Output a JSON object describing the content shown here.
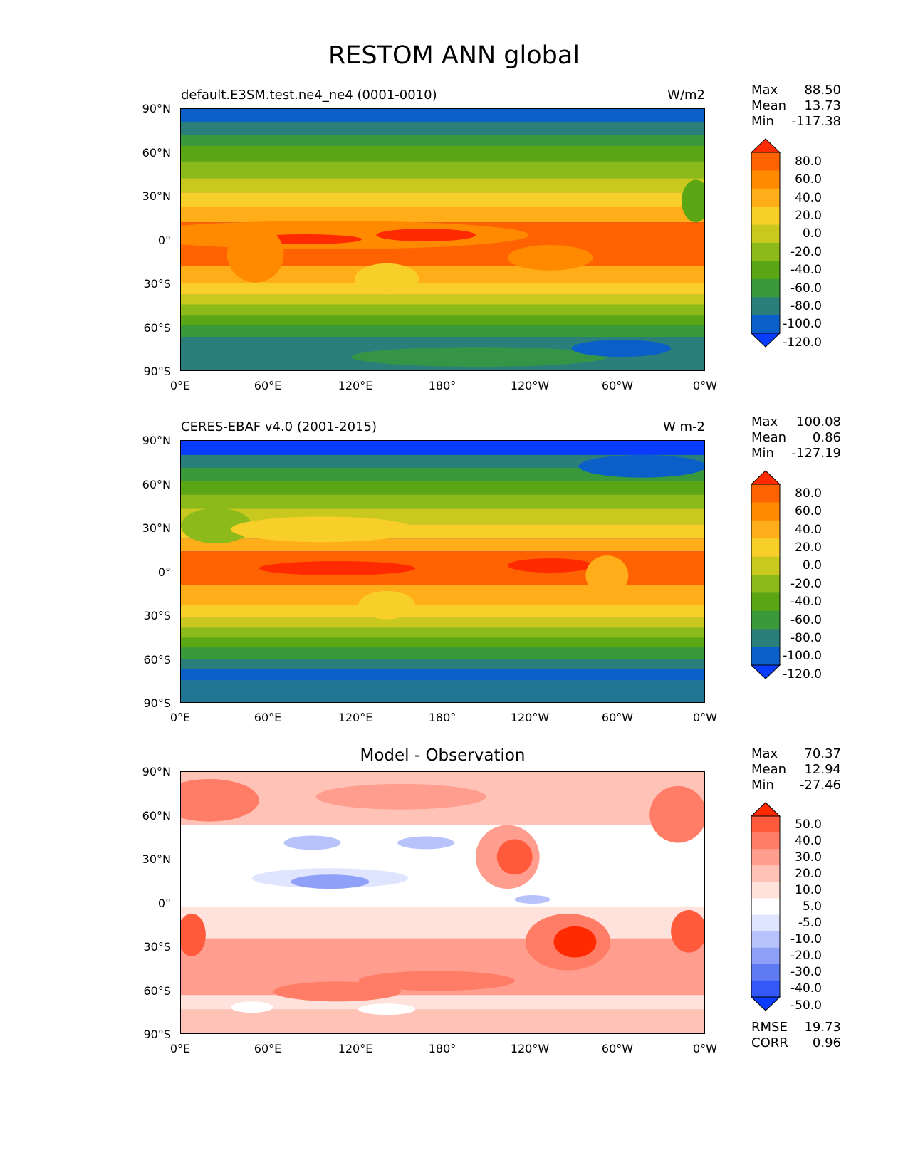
{
  "title": "RESTOM ANN global",
  "axes": {
    "y_ticks": [
      "90°N",
      "60°N",
      "30°N",
      "0°",
      "30°S",
      "60°S",
      "90°S"
    ],
    "x_ticks": [
      "0°E",
      "60°E",
      "120°E",
      "180°",
      "120°W",
      "60°W",
      "0°W"
    ]
  },
  "panels": [
    {
      "id": "model",
      "title": "default.E3SM.test.ne4_ne4 (0001-0010)",
      "units": "W/m2",
      "stats": [
        {
          "label": "Max",
          "value": "88.50"
        },
        {
          "label": "Mean",
          "value": "13.73"
        },
        {
          "label": "Min",
          "value": "-117.38"
        }
      ],
      "colorbar": {
        "labels": [
          "80.0",
          "60.0",
          "40.0",
          "20.0",
          "0.0",
          "-20.0",
          "-40.0",
          "-60.0",
          "-80.0",
          "-100.0",
          "-120.0"
        ],
        "colors": [
          "#ff2a00",
          "#ff6200",
          "#ff8a00",
          "#ffae1a",
          "#f7cf28",
          "#c8c81e",
          "#8cba1a",
          "#5aa614",
          "#3a9a3a",
          "#2a7f7a",
          "#0a60c8",
          "#0a3cff"
        ]
      }
    },
    {
      "id": "obs",
      "title": "CERES-EBAF v4.0 (2001-2015)",
      "units": "W m-2",
      "stats": [
        {
          "label": "Max",
          "value": "100.08"
        },
        {
          "label": "Mean",
          "value": "0.86"
        },
        {
          "label": "Min",
          "value": "-127.19"
        }
      ],
      "colorbar": {
        "labels": [
          "80.0",
          "60.0",
          "40.0",
          "20.0",
          "0.0",
          "-20.0",
          "-40.0",
          "-60.0",
          "-80.0",
          "-100.0",
          "-120.0"
        ],
        "colors": [
          "#ff2a00",
          "#ff6200",
          "#ff8a00",
          "#ffae1a",
          "#f7cf28",
          "#c8c81e",
          "#8cba1a",
          "#5aa614",
          "#3a9a3a",
          "#2a7f7a",
          "#0a60c8",
          "#0a3cff"
        ]
      }
    },
    {
      "id": "diff",
      "title": "Model - Observation",
      "stats": [
        {
          "label": "Max",
          "value": "70.37"
        },
        {
          "label": "Mean",
          "value": "12.94"
        },
        {
          "label": "Min",
          "value": "-27.46"
        }
      ],
      "extra_stats": [
        {
          "label": "RMSE",
          "value": "19.73"
        },
        {
          "label": "CORR",
          "value": "0.96"
        }
      ],
      "colorbar": {
        "labels": [
          "50.0",
          "40.0",
          "30.0",
          "20.0",
          "10.0",
          "5.0",
          "-5.0",
          "-10.0",
          "-20.0",
          "-30.0",
          "-40.0",
          "-50.0"
        ],
        "colors": [
          "#ff2a00",
          "#ff5a3c",
          "#ff7d66",
          "#ff9e8e",
          "#ffc2b6",
          "#ffe2dc",
          "#ffffff",
          "#dfe4ff",
          "#b8c3fb",
          "#8ea0f7",
          "#5f7bf3",
          "#3458f7",
          "#0a3cff"
        ]
      }
    }
  ]
}
